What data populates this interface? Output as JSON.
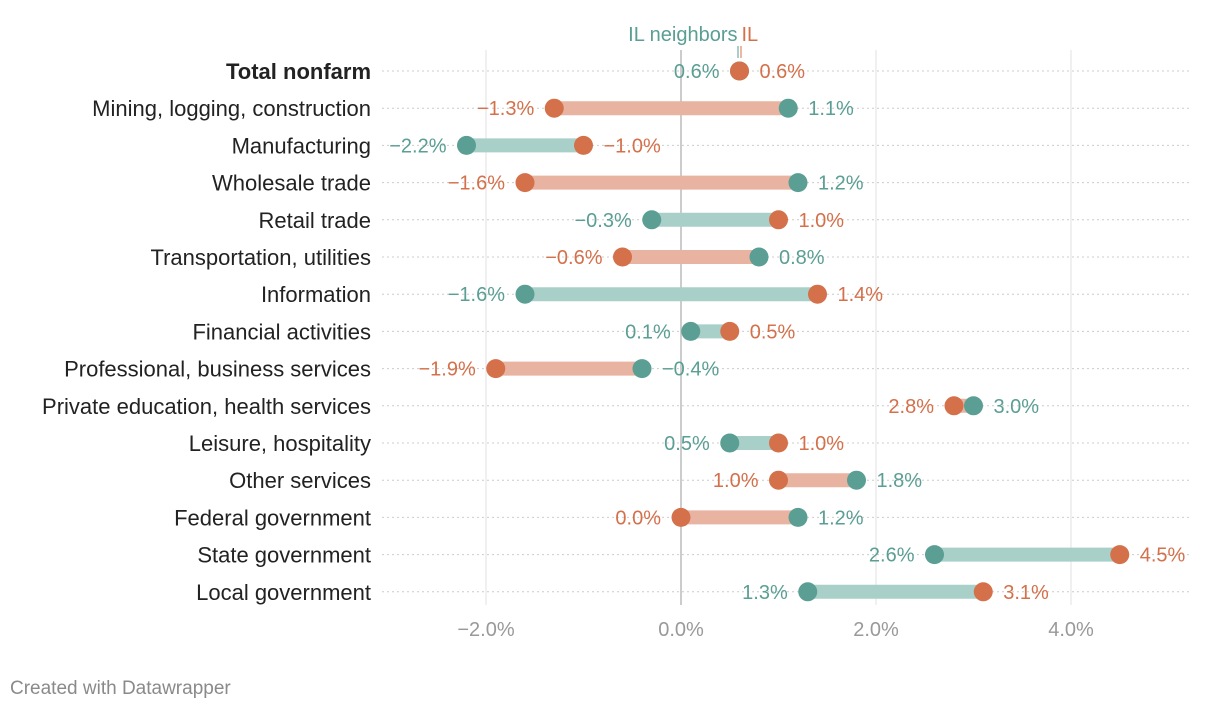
{
  "colors": {
    "il": "#d4704a",
    "neighbors": "#5a9e94",
    "il_bar": "#e8b3a1",
    "neighbors_bar": "#a9cfc9"
  },
  "legend": {
    "neighbors_label": "IL neighbors",
    "il_label": "IL"
  },
  "footer": {
    "credit": "Created with Datawrapper"
  },
  "chart_data": {
    "type": "dot-range",
    "title": "",
    "xlabel": "",
    "ylabel": "",
    "xlim": [
      -3.0,
      5.2
    ],
    "xticks": [
      -2.0,
      0.0,
      2.0,
      4.0
    ],
    "tick_labels": [
      "−2.0%",
      "0.0%",
      "2.0%",
      "4.0%"
    ],
    "series": [
      {
        "name": "IL neighbors",
        "key": "neighbors"
      },
      {
        "name": "IL",
        "key": "il"
      }
    ],
    "categories": [
      "Total nonfarm",
      "Mining, logging, construction",
      "Manufacturing",
      "Wholesale trade",
      "Retail trade",
      "Transportation, utilities",
      "Information",
      "Financial activities",
      "Professional, business services",
      "Private education, health services",
      "Leisure, hospitality",
      "Other services",
      "Federal government",
      "State government",
      "Local government"
    ],
    "il": [
      0.6,
      -1.3,
      -1.0,
      -1.6,
      1.0,
      -0.6,
      1.4,
      0.5,
      -1.9,
      2.8,
      1.0,
      1.0,
      0.0,
      4.5,
      3.1
    ],
    "neighbors": [
      0.6,
      1.1,
      -2.2,
      1.2,
      -0.3,
      0.8,
      -1.6,
      0.1,
      -0.4,
      3.0,
      0.5,
      1.8,
      1.2,
      2.6,
      1.3
    ],
    "il_labels": [
      "0.6%",
      "−1.3%",
      "−1.0%",
      "−1.6%",
      "1.0%",
      "−0.6%",
      "1.4%",
      "0.5%",
      "−1.9%",
      "2.8%",
      "1.0%",
      "1.0%",
      "0.0%",
      "4.5%",
      "3.1%"
    ],
    "neighbors_labels": [
      "0.6%",
      "1.1%",
      "−2.2%",
      "1.2%",
      "−0.3%",
      "0.8%",
      "−1.6%",
      "0.1%",
      "−0.4%",
      "3.0%",
      "0.5%",
      "1.8%",
      "1.2%",
      "2.6%",
      "1.3%"
    ],
    "bold_categories": [
      "Total nonfarm"
    ]
  }
}
